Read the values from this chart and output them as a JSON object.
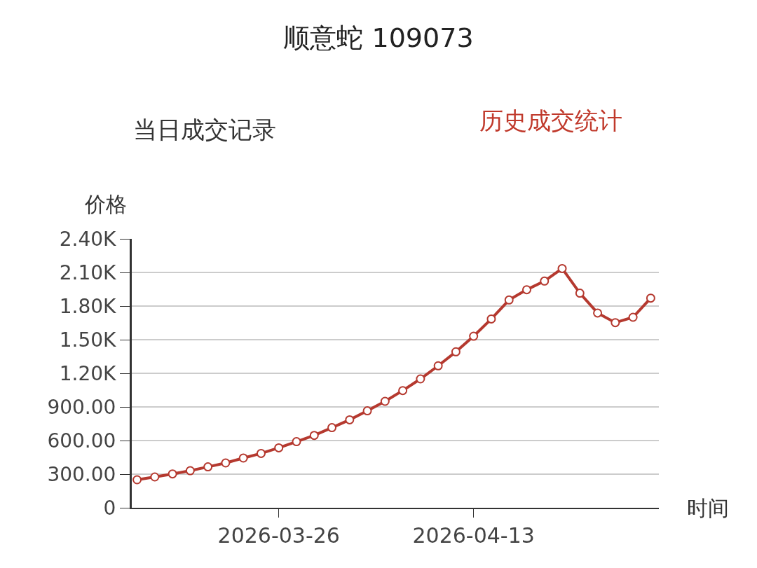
{
  "chart_data": {
    "type": "line",
    "title": "顺意蛇 109073",
    "annotations": [
      "当日成交记录",
      "历史成交统计"
    ],
    "xlabel": "时间",
    "ylabel": "价格",
    "categories": [
      null,
      null,
      null,
      null,
      null,
      null,
      null,
      null,
      "2026-03-26",
      null,
      null,
      null,
      null,
      null,
      null,
      null,
      null,
      null,
      null,
      "2026-04-13",
      null,
      null,
      null,
      null,
      null,
      null,
      null,
      null,
      null,
      null
    ],
    "series": [
      {
        "color": "#b5392f",
        "values": [
          250,
          275,
          302,
          331,
          365,
          400,
          444,
          485,
          535,
          590,
          646,
          715,
          785,
          865,
          950,
          1046,
          1150,
          1267,
          1392,
          1531,
          1685,
          1854,
          1946,
          2023,
          2135,
          1915,
          1738,
          1652,
          1700,
          1871
        ]
      }
    ],
    "ylim": [
      0,
      2400
    ],
    "yticks": [
      0,
      {
        "value": 300,
        "label": "300.00"
      },
      {
        "value": 600,
        "label": "600.00"
      },
      {
        "value": 900,
        "label": "900.00"
      },
      {
        "value": 1200,
        "label": "1.20K"
      },
      {
        "value": 1500,
        "label": "1.50K"
      },
      {
        "value": 1800,
        "label": "1.80K"
      },
      {
        "value": 2100,
        "label": "2.10K"
      },
      {
        "value": 2400,
        "label": "2.40K"
      }
    ],
    "grid": "y",
    "marker": "circle",
    "line_style": "solid"
  }
}
